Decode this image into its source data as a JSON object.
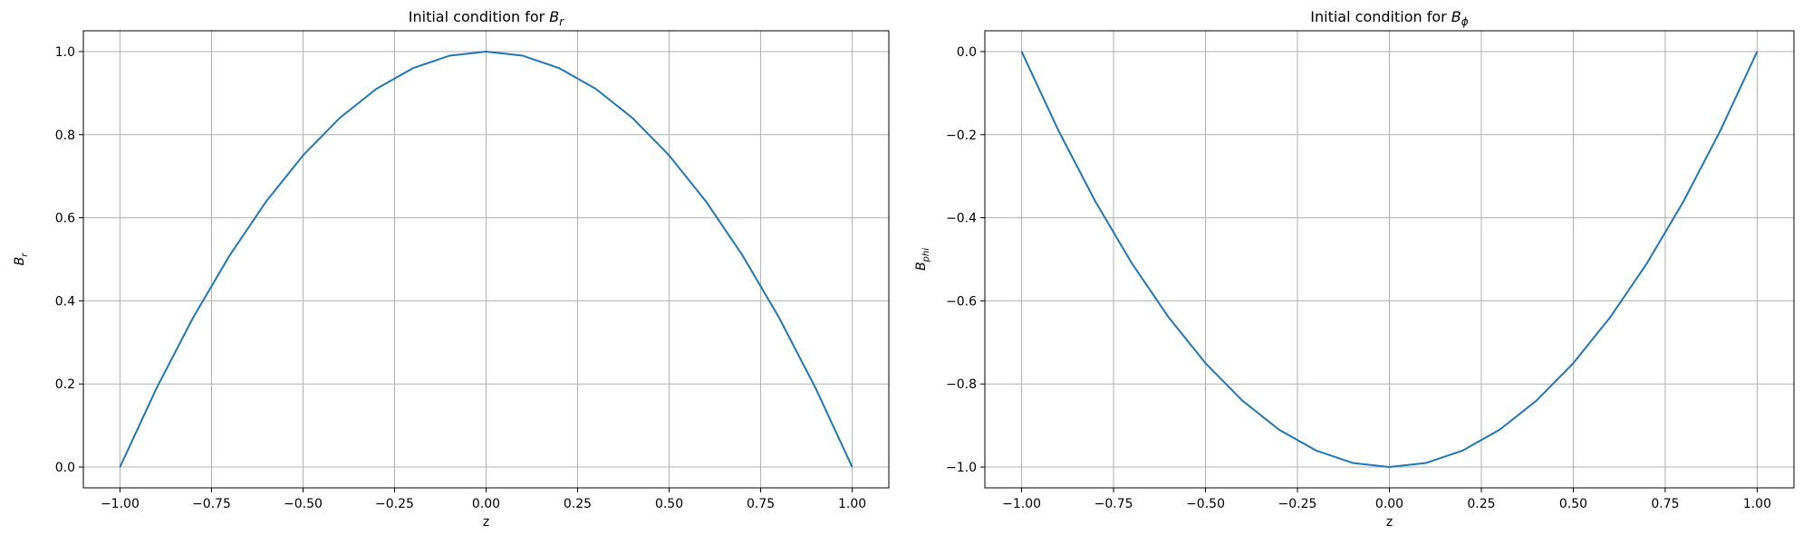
{
  "chart_data": [
    {
      "type": "line",
      "title": {
        "prefix": "Initial condition for ",
        "var": "B",
        "sub": "r"
      },
      "xlabel": "z",
      "ylabel": {
        "var": "B",
        "sub": "r"
      },
      "xlim": [
        -1.1,
        1.1
      ],
      "ylim": [
        -0.05,
        1.05
      ],
      "xticks": [
        -1.0,
        -0.75,
        -0.5,
        -0.25,
        0.0,
        0.25,
        0.5,
        0.75,
        1.0
      ],
      "xtick_labels": [
        "−1.00",
        "−0.75",
        "−0.50",
        "−0.25",
        "0.00",
        "0.25",
        "0.50",
        "0.75",
        "1.00"
      ],
      "yticks": [
        0.0,
        0.2,
        0.4,
        0.6,
        0.8,
        1.0
      ],
      "ytick_labels": [
        "0.0",
        "0.2",
        "0.4",
        "0.6",
        "0.8",
        "1.0"
      ],
      "grid": true,
      "color": "#1f77b4",
      "series": [
        {
          "x": [
            -1.0,
            -0.9,
            -0.8,
            -0.7,
            -0.6,
            -0.5,
            -0.4,
            -0.3,
            -0.2,
            -0.1,
            0.0,
            0.1,
            0.2,
            0.3,
            0.4,
            0.5,
            0.6,
            0.7,
            0.8,
            0.9,
            1.0
          ],
          "y": [
            0.0,
            0.19,
            0.36,
            0.51,
            0.64,
            0.75,
            0.84,
            0.91,
            0.96,
            0.99,
            1.0,
            0.99,
            0.96,
            0.91,
            0.84,
            0.75,
            0.64,
            0.51,
            0.36,
            0.19,
            0.0
          ]
        }
      ]
    },
    {
      "type": "line",
      "title": {
        "prefix": "Initial condition for ",
        "var": "B",
        "sub": "ϕ"
      },
      "xlabel": "z",
      "ylabel": {
        "var": "B",
        "sub": "phi"
      },
      "xlim": [
        -1.1,
        1.1
      ],
      "ylim": [
        -1.05,
        0.05
      ],
      "xticks": [
        -1.0,
        -0.75,
        -0.5,
        -0.25,
        0.0,
        0.25,
        0.5,
        0.75,
        1.0
      ],
      "xtick_labels": [
        "−1.00",
        "−0.75",
        "−0.50",
        "−0.25",
        "0.00",
        "0.25",
        "0.50",
        "0.75",
        "1.00"
      ],
      "yticks": [
        -1.0,
        -0.8,
        -0.6,
        -0.4,
        -0.2,
        0.0
      ],
      "ytick_labels": [
        "−1.0",
        "−0.8",
        "−0.6",
        "−0.4",
        "−0.2",
        "0.0"
      ],
      "grid": true,
      "color": "#1f77b4",
      "series": [
        {
          "x": [
            -1.0,
            -0.9,
            -0.8,
            -0.7,
            -0.6,
            -0.5,
            -0.4,
            -0.3,
            -0.2,
            -0.1,
            0.0,
            0.1,
            0.2,
            0.3,
            0.4,
            0.5,
            0.6,
            0.7,
            0.8,
            0.9,
            1.0
          ],
          "y": [
            0.0,
            -0.19,
            -0.36,
            -0.51,
            -0.64,
            -0.75,
            -0.84,
            -0.91,
            -0.96,
            -0.99,
            -1.0,
            -0.99,
            -0.96,
            -0.91,
            -0.84,
            -0.75,
            -0.64,
            -0.51,
            -0.36,
            -0.19,
            0.0
          ]
        }
      ]
    }
  ]
}
